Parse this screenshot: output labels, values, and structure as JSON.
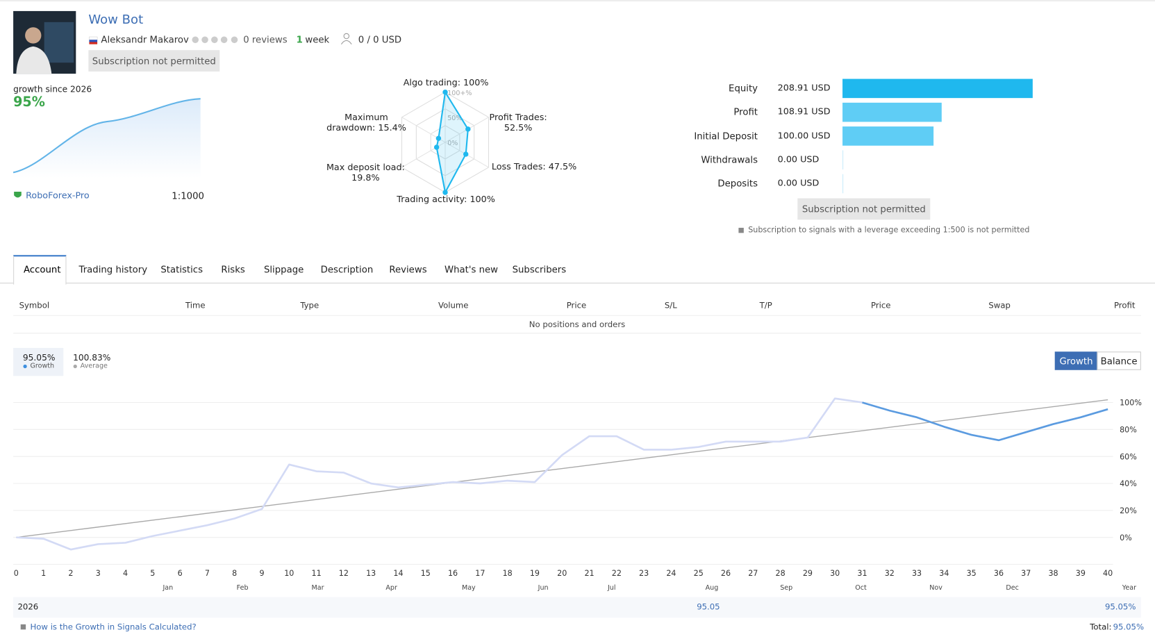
{
  "header": {
    "title": "Wow Bot",
    "author": "Aleksandr Makarov",
    "reviews": "0 reviews",
    "age_value": "1",
    "age_unit": "week",
    "subscribers": "0 / 0 USD",
    "subscribe_button": "Subscription not permitted"
  },
  "growth_summary": {
    "label": "growth since 2026",
    "value": "95%",
    "broker": "RoboForex-Pro",
    "leverage": "1:1000"
  },
  "radar": {
    "rlim": [
      0,
      100
    ],
    "ticks": [
      {
        "value": 100,
        "label": "100+%"
      },
      {
        "value": 50,
        "label": "50%"
      },
      {
        "value": 0,
        "label": "0%"
      }
    ],
    "axes": [
      {
        "label": "Algo trading: 100%",
        "value": 100
      },
      {
        "label": "Profit Trades:\n52.5%",
        "value": 52.5
      },
      {
        "label": "Loss Trades: 47.5%",
        "value": 47.5
      },
      {
        "label": "Trading activity: 100%",
        "value": 100
      },
      {
        "label": "Max deposit load:\n19.8%",
        "value": 19.8
      },
      {
        "label": "Maximum\ndrawdown: 15.4%",
        "value": 15.4
      }
    ]
  },
  "stats": {
    "xlim": [
      0,
      208.91
    ],
    "rows": [
      {
        "label": "Equity",
        "value": 208.91,
        "value_label": "208.91 USD",
        "color": "#1fb8ee"
      },
      {
        "label": "Profit",
        "value": 108.91,
        "value_label": "108.91 USD",
        "color": "#5fcdf5"
      },
      {
        "label": "Initial Deposit",
        "value": 100,
        "value_label": "100.00 USD",
        "color": "#5fcdf5"
      },
      {
        "label": "Withdrawals",
        "value": 0,
        "value_label": "0.00 USD",
        "color": "#5fcdf5"
      },
      {
        "label": "Deposits",
        "value": 0,
        "value_label": "0.00 USD",
        "color": "#5fcdf5"
      }
    ],
    "button": "Subscription not permitted",
    "note": "Subscription to signals with a leverage exceeding 1:500 is not permitted"
  },
  "tabs": [
    "Account",
    "Trading history",
    "Statistics",
    "Risks",
    "Slippage",
    "Description",
    "Reviews",
    "What's new",
    "Subscribers"
  ],
  "active_tab": 0,
  "positions": {
    "columns": [
      "Symbol",
      "Time",
      "Type",
      "Volume",
      "Price",
      "S/L",
      "T/P",
      "Price",
      "Swap",
      "Profit"
    ],
    "empty": "No positions and orders"
  },
  "growth_chart": {
    "type": "line",
    "summary": [
      {
        "value": "95.05%",
        "label": "Growth"
      },
      {
        "value": "100.83%",
        "label": "Average"
      }
    ],
    "buttons": [
      "Growth",
      "Balance"
    ],
    "xlim": [
      0,
      40
    ],
    "xticks": [
      0,
      1,
      2,
      3,
      4,
      5,
      6,
      7,
      8,
      9,
      10,
      11,
      12,
      13,
      14,
      15,
      16,
      17,
      18,
      19,
      20,
      21,
      22,
      23,
      24,
      25,
      26,
      27,
      28,
      29,
      30,
      31,
      32,
      33,
      34,
      35,
      36,
      37,
      38,
      39,
      40
    ],
    "months": [
      {
        "value": 5.56,
        "label": "Jan"
      },
      {
        "value": 8.29,
        "label": "Feb"
      },
      {
        "value": 11.05,
        "label": "Mar"
      },
      {
        "value": 13.75,
        "label": "Apr"
      },
      {
        "value": 16.58,
        "label": "May"
      },
      {
        "value": 19.31,
        "label": "Jun"
      },
      {
        "value": 21.82,
        "label": "Jul"
      },
      {
        "value": 25.49,
        "label": "Aug"
      },
      {
        "value": 28.22,
        "label": "Sep"
      },
      {
        "value": 30.95,
        "label": "Oct"
      },
      {
        "value": 33.7,
        "label": "Nov"
      },
      {
        "value": 36.5,
        "label": "Dec"
      }
    ],
    "year_label": "Year",
    "ylim": [
      -20,
      110
    ],
    "yticks": [
      {
        "value": 0,
        "label": "0%"
      },
      {
        "value": 20,
        "label": "20%"
      },
      {
        "value": 40,
        "label": "40%"
      },
      {
        "value": 60,
        "label": "60%"
      },
      {
        "value": 80,
        "label": "80%"
      },
      {
        "value": 100,
        "label": "100%"
      }
    ],
    "series": [
      {
        "color": "#d3daf5",
        "x": [
          0,
          1,
          2,
          3,
          4,
          5,
          6,
          7,
          8,
          9,
          10,
          11,
          12,
          13,
          14,
          15,
          16,
          17,
          18,
          19,
          20,
          21,
          22,
          23,
          24,
          25,
          26,
          27,
          28,
          29,
          30,
          31
        ],
        "values": [
          0,
          -1,
          -9,
          -5,
          -4,
          1,
          5,
          9,
          14,
          21,
          54,
          49,
          48,
          40,
          37,
          39,
          41,
          40,
          42,
          41,
          61,
          75,
          75,
          65,
          65,
          67,
          71,
          71,
          71,
          74,
          103,
          100
        ]
      },
      {
        "color": "#5b9be0",
        "x": [
          31,
          32,
          33,
          34,
          35,
          36,
          37,
          38,
          39,
          40
        ],
        "values": [
          100,
          94,
          89,
          82,
          76,
          72,
          78,
          84,
          89,
          95
        ]
      },
      {
        "color": "#a9a9a9",
        "x": [
          0,
          40
        ],
        "values": [
          0,
          102
        ]
      }
    ],
    "footer": {
      "year": "2026",
      "mid": "95.05",
      "total_label": "Total:",
      "total": "95.05%"
    },
    "link": "How is the Growth in Signals Calculated?"
  }
}
